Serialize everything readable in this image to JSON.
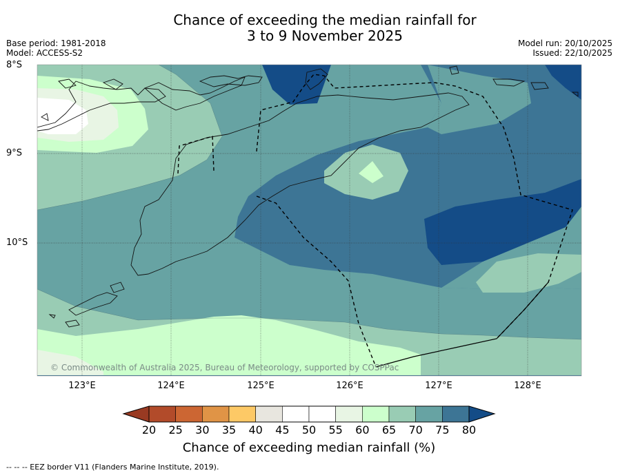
{
  "title": {
    "line1": "Chance of exceeding the median rainfall for",
    "line2": "3 to 9 November 2025"
  },
  "meta_left": {
    "base_period": "Base period: 1981-2018",
    "model": "Model: ACCESS-S2"
  },
  "meta_right": {
    "model_run": "Model run: 20/10/2025",
    "issued": "Issued: 22/10/2025"
  },
  "latitude_labels": [
    "8°S",
    "9°S",
    "10°S"
  ],
  "longitude_labels": [
    "123°E",
    "124°E",
    "125°E",
    "126°E",
    "127°E",
    "128°E"
  ],
  "copyright": "© Commonwealth of Australia 2025, Bureau of Meteorology, supported by COSPPac",
  "colorbar": {
    "ticks": [
      "20",
      "25",
      "30",
      "35",
      "40",
      "45",
      "50",
      "55",
      "60",
      "65",
      "70",
      "75",
      "80"
    ],
    "colors": [
      "#b24b2a",
      "#cc6633",
      "#e09446",
      "#fdc966",
      "#e8e6df",
      "#ffffff",
      "#ffffff",
      "#e8f5e4",
      "#ccffcc",
      "#99ccb4",
      "#67a3a3",
      "#3d7595"
    ],
    "under_color": "#993a22",
    "over_color": "#144c87",
    "label": "Chance of exceeding median rainfall (%)"
  },
  "footer": "--  --  -- EEZ border V11 (Flanders Marine Institute, 2019)."
}
